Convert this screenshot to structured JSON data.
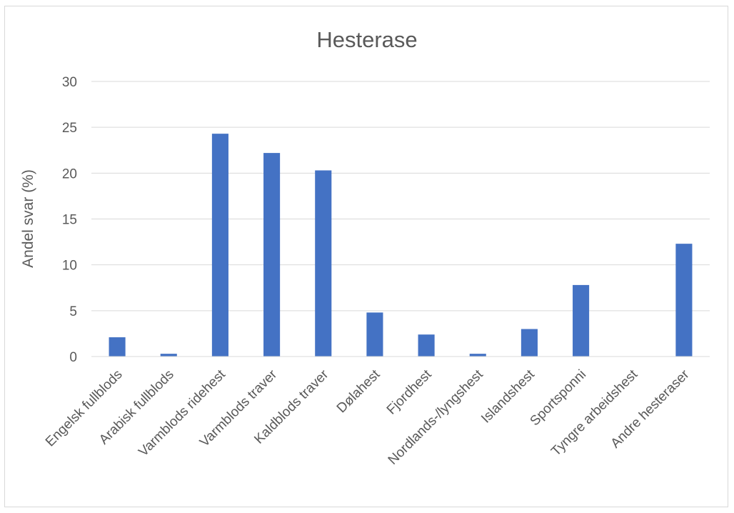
{
  "chart_data": {
    "type": "bar",
    "title": "Hesterase",
    "xlabel": "",
    "ylabel": "Andel svar (%)",
    "ylim": [
      0,
      30
    ],
    "yticks": [
      0,
      5,
      10,
      15,
      20,
      25,
      30
    ],
    "grid": true,
    "legend": "none",
    "bar_color": "#4472c4",
    "categories": [
      "Engelsk fullblods",
      "Arabisk fullblods",
      "Varmblods ridehest",
      "Varmblods traver",
      "Kaldblods traver",
      "Dølahest",
      "Fjordhest",
      "Nordlands-/lyngshest",
      "Islandshest",
      "Sportsponni",
      "Tyngre arbeidshest",
      "Andre hesteraser"
    ],
    "values": [
      2.1,
      0.3,
      24.3,
      22.2,
      20.3,
      4.8,
      2.4,
      0.3,
      3.0,
      7.8,
      0.0,
      12.3
    ]
  }
}
